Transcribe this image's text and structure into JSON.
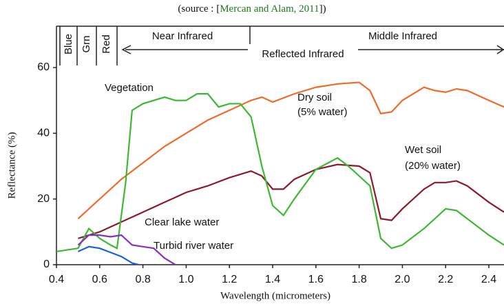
{
  "chart_data": {
    "type": "line",
    "title_prefix": "(source : [",
    "title_link": "Mercan and Alam, 2011",
    "title_suffix": "])",
    "xlabel": "Wavelength (micrometers)",
    "ylabel": "Reflectance (%)",
    "bands": [
      "Blue",
      "Grn",
      "Red",
      "Near Infrared",
      "Middle Infrared",
      "Reflected Infrared"
    ],
    "annotations": [
      "Vegetation",
      "Dry soil",
      "(5% water)",
      "Wet soil",
      "(20% water)",
      "Clear lake water",
      "Turbid river water"
    ],
    "xlim": [
      0.4,
      2.47
    ],
    "ylim": [
      0,
      60
    ],
    "xticks": [
      0.4,
      0.6,
      0.8,
      {
        "value": 1,
        "label": "1.0"
      },
      1.2,
      1.4,
      1.6,
      1.8,
      {
        "value": 2,
        "label": "2.0"
      },
      2.2,
      2.4
    ],
    "yticks": [
      0,
      20,
      40,
      60
    ],
    "series": [
      {
        "name": "Dry soil",
        "color": "#f06a2a",
        "x": [
          0.5,
          0.6,
          0.7,
          0.8,
          0.9,
          1.0,
          1.1,
          1.2,
          1.3,
          1.35,
          1.4,
          1.5,
          1.6,
          1.7,
          1.8,
          1.85,
          1.9,
          1.95,
          2.0,
          2.1,
          2.15,
          2.2,
          2.25,
          2.3,
          2.4,
          2.47
        ],
        "values": [
          14,
          20,
          26,
          31,
          36,
          40,
          44,
          47,
          50,
          51,
          49.5,
          52,
          54,
          55,
          55.5,
          53,
          46,
          46.5,
          50,
          54,
          53,
          52.5,
          53.5,
          53,
          50,
          48
        ]
      },
      {
        "name": "Wet soil",
        "color": "#8b1a2a",
        "x": [
          0.5,
          0.6,
          0.7,
          0.8,
          0.9,
          1.0,
          1.1,
          1.2,
          1.3,
          1.35,
          1.4,
          1.45,
          1.5,
          1.6,
          1.7,
          1.8,
          1.85,
          1.9,
          1.95,
          2.0,
          2.1,
          2.15,
          2.2,
          2.25,
          2.3,
          2.4,
          2.47
        ],
        "values": [
          8,
          10,
          13,
          16,
          19,
          22,
          24,
          26.5,
          28.5,
          27,
          23,
          23,
          26,
          29,
          30.5,
          30,
          28,
          14,
          13.5,
          17,
          23,
          25,
          25,
          25.5,
          24,
          19,
          16
        ]
      },
      {
        "name": "Vegetation",
        "color": "#3cb832",
        "x": [
          0.4,
          0.5,
          0.55,
          0.6,
          0.65,
          0.68,
          0.72,
          0.75,
          0.8,
          0.9,
          0.95,
          1.0,
          1.05,
          1.1,
          1.15,
          1.2,
          1.25,
          1.3,
          1.35,
          1.4,
          1.45,
          1.5,
          1.6,
          1.7,
          1.75,
          1.8,
          1.85,
          1.9,
          1.95,
          2.0,
          2.1,
          2.2,
          2.25,
          2.3,
          2.4,
          2.47
        ],
        "values": [
          4,
          5,
          11,
          8,
          6,
          5,
          25,
          47,
          49,
          51,
          50,
          50,
          52,
          52,
          48,
          49,
          49,
          45,
          30,
          18,
          15,
          20,
          29,
          32.5,
          30,
          27,
          24,
          8,
          5,
          6,
          11,
          17,
          16.5,
          14,
          9,
          6
        ]
      },
      {
        "name": "Clear lake water",
        "color": "#1a5fe0",
        "x": [
          0.5,
          0.55,
          0.6,
          0.7,
          0.75,
          0.78
        ],
        "values": [
          4,
          5.5,
          5,
          2.5,
          0.5,
          0
        ]
      },
      {
        "name": "Turbid river water",
        "color": "#8a2ec8",
        "x": [
          0.5,
          0.55,
          0.6,
          0.65,
          0.7,
          0.75,
          0.8,
          0.85,
          0.9,
          0.95
        ],
        "values": [
          6,
          9,
          9,
          8.5,
          9,
          6,
          5.5,
          5,
          2,
          0
        ]
      }
    ]
  }
}
